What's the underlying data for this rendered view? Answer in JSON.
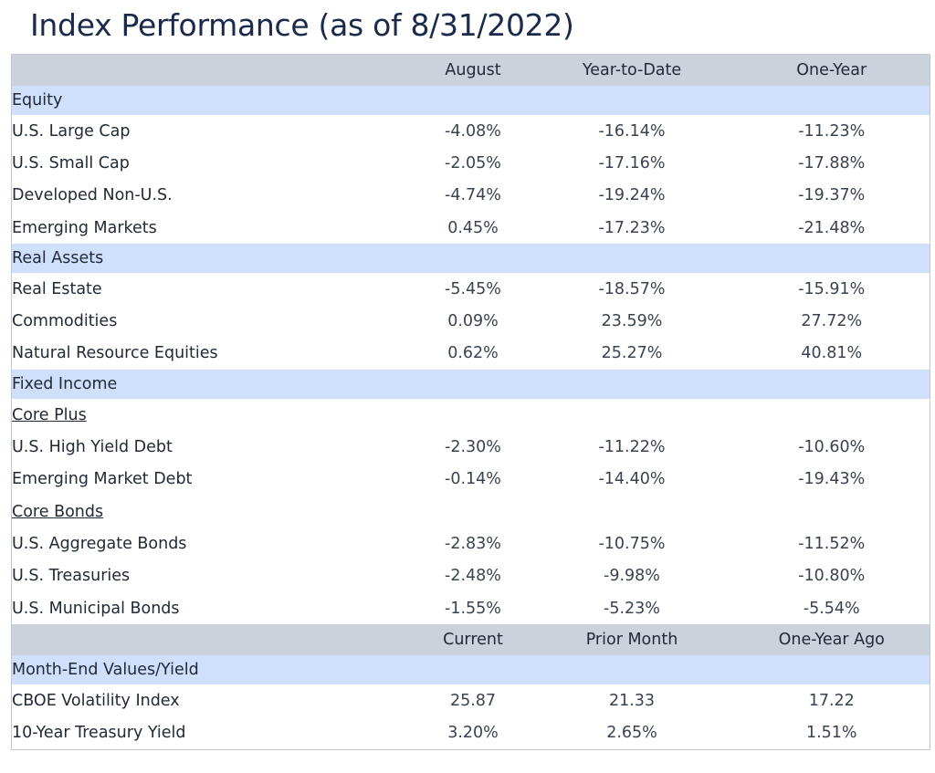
{
  "title": "Index Performance (as of 8/31/2022)",
  "headers": [
    "August",
    "Year-to-Date",
    "One-Year"
  ],
  "sections": [
    {
      "name": "Equity",
      "rows": [
        {
          "label": "U.S. Large Cap",
          "values": [
            "-4.08%",
            "-16.14%",
            "-11.23%"
          ]
        },
        {
          "label": "U.S. Small Cap",
          "values": [
            "-2.05%",
            "-17.16%",
            "-17.88%"
          ]
        },
        {
          "label": "Developed Non-U.S.",
          "values": [
            "-4.74%",
            "-19.24%",
            "-19.37%"
          ]
        },
        {
          "label": "Emerging Markets",
          "values": [
            "0.45%",
            "-17.23%",
            "-21.48%"
          ]
        }
      ]
    },
    {
      "name": "Real Assets",
      "rows": [
        {
          "label": "Real Estate",
          "values": [
            "-5.45%",
            "-18.57%",
            "-15.91%"
          ]
        },
        {
          "label": "Commodities",
          "values": [
            "0.09%",
            "23.59%",
            "27.72%"
          ]
        },
        {
          "label": "Natural Resource Equities",
          "values": [
            "0.62%",
            "25.27%",
            "40.81%"
          ]
        }
      ]
    },
    {
      "name": "Fixed Income",
      "rows": [
        {
          "subheading": "Core Plus"
        },
        {
          "label": "U.S. High Yield Debt",
          "values": [
            "-2.30%",
            "-11.22%",
            "-10.60%"
          ]
        },
        {
          "label": "Emerging Market Debt",
          "values": [
            "-0.14%",
            "-14.40%",
            "-19.43%"
          ]
        },
        {
          "subheading": "Core Bonds"
        },
        {
          "label": "U.S. Aggregate Bonds",
          "values": [
            "-2.83%",
            "-10.75%",
            "-11.52%"
          ]
        },
        {
          "label": "U.S. Treasuries",
          "values": [
            "-2.48%",
            "-9.98%",
            "-10.80%"
          ]
        },
        {
          "label": "U.S. Municipal Bonds",
          "values": [
            "-1.55%",
            "-5.23%",
            "-5.54%"
          ]
        }
      ]
    }
  ],
  "headers2": [
    "Current",
    "Prior Month",
    "One-Year Ago"
  ],
  "sections2": [
    {
      "name": "Month-End Values/Yield",
      "rows": [
        {
          "label": "CBOE Volatility Index",
          "values": [
            "25.87",
            "21.33",
            "17.22"
          ]
        },
        {
          "label": "10-Year Treasury Yield",
          "values": [
            "3.20%",
            "2.65%",
            "1.51%"
          ]
        }
      ]
    }
  ],
  "colors": {
    "header_bg": "#ccd2dc",
    "section_bg": "#cfe0fc",
    "title": "#1b2a4a"
  }
}
